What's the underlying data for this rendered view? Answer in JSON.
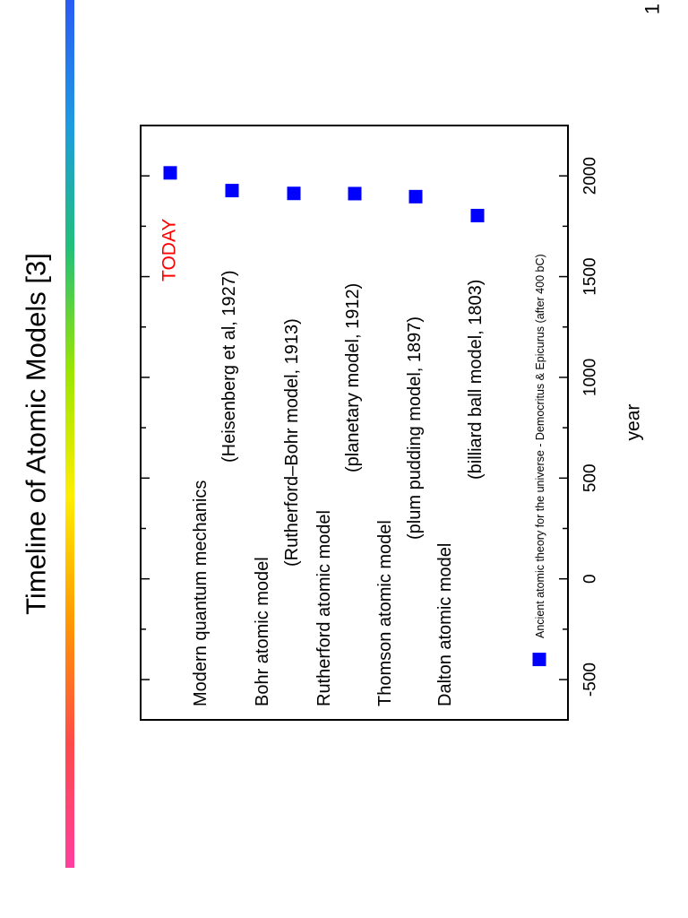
{
  "slide": {
    "title": "Timeline of Atomic Models [3]",
    "page_number": "1"
  },
  "colors": {
    "marker": "#0000ff",
    "today": "#ff0000",
    "axis": "#000000",
    "gradient": [
      "#ff3f9e",
      "#ff4a4a",
      "#ff9900",
      "#ffee00",
      "#9be600",
      "#22c07a",
      "#1e9be0",
      "#2a5bf5"
    ]
  },
  "chart_data": {
    "type": "scatter",
    "xlabel": "year",
    "xlim": [
      -700,
      2250
    ],
    "xticks": [
      -500,
      0,
      500,
      1000,
      1500,
      2000
    ],
    "grid": false,
    "series": [
      {
        "label": "Ancient atomic theory for the universe - Democritus & Epicurus (after 400 bC)",
        "x": -400
      },
      {
        "label": "Dalton atomic model",
        "sublabel": "(billiard ball model, 1803)",
        "x": 1803
      },
      {
        "label": "Thomson atomic model",
        "sublabel": "(plum pudding model, 1897)",
        "x": 1897
      },
      {
        "label": "Rutherford atomic model",
        "sublabel": "(planetary model, 1912)",
        "x": 1912
      },
      {
        "label": "Bohr atomic model",
        "sublabel": "(Rutherford–Bohr model, 1913)",
        "x": 1913
      },
      {
        "label": "Modern quantum mechanics",
        "sublabel": "(Heisenberg et al, 1927)",
        "x": 1927
      },
      {
        "label": "TODAY",
        "x": 2015
      }
    ]
  }
}
